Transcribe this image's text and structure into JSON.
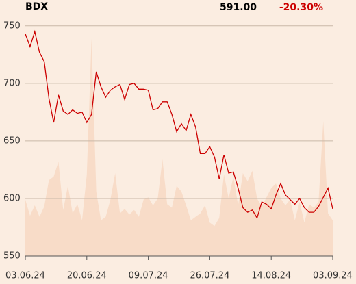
{
  "chart_data": {
    "type": "line",
    "title": "BDX",
    "price": "591.00",
    "change": "-20.30%",
    "categories": [
      "03.06.24",
      null,
      null,
      null,
      null,
      null,
      null,
      null,
      null,
      null,
      null,
      null,
      null,
      "20.06.24",
      null,
      null,
      null,
      null,
      null,
      null,
      null,
      null,
      null,
      null,
      null,
      null,
      "09.07.24",
      null,
      null,
      null,
      null,
      null,
      null,
      null,
      null,
      null,
      null,
      null,
      null,
      "26.07.24",
      null,
      null,
      null,
      null,
      null,
      null,
      null,
      null,
      null,
      null,
      null,
      null,
      "14.08.24",
      null,
      null,
      null,
      null,
      null,
      null,
      null,
      null,
      null,
      null,
      null,
      null,
      "03.09.24"
    ],
    "series": [
      {
        "type": "area",
        "color": "#f8dcc8",
        "values": [
          599,
          585,
          594,
          584,
          593,
          616,
          619,
          632,
          590,
          611,
          587,
          595,
          581,
          621,
          739,
          606,
          581,
          584,
          599,
          622,
          587,
          591,
          586,
          590,
          584,
          599,
          601,
          594,
          600,
          634,
          595,
          592,
          611,
          606,
          594,
          581,
          584,
          587,
          594,
          579,
          576,
          583,
          621,
          600,
          619,
          594,
          622,
          615,
          624,
          600,
          593,
          601,
          609,
          613,
          600,
          594,
          599,
          581,
          597,
          579,
          595,
          592,
          597,
          667,
          587,
          581
        ]
      },
      {
        "type": "line",
        "color": "#cc0000",
        "values": [
          743,
          732,
          745,
          727,
          719,
          687,
          666,
          690,
          676,
          673,
          677,
          674,
          675,
          666,
          673,
          710,
          697,
          688,
          694,
          697,
          699,
          686,
          699,
          700,
          695,
          695,
          694,
          677,
          678,
          684,
          684,
          673,
          658,
          665,
          659,
          673,
          662,
          639,
          639,
          645,
          636,
          617,
          638,
          622,
          623,
          609,
          592,
          588,
          590,
          583,
          597,
          595,
          591,
          603,
          613,
          603,
          599,
          595,
          600,
          592,
          588,
          588,
          593,
          601,
          609,
          591
        ]
      }
    ],
    "ylim": [
      550,
      760
    ],
    "yticks": [
      550,
      600,
      650,
      700,
      750
    ],
    "grid": true
  }
}
